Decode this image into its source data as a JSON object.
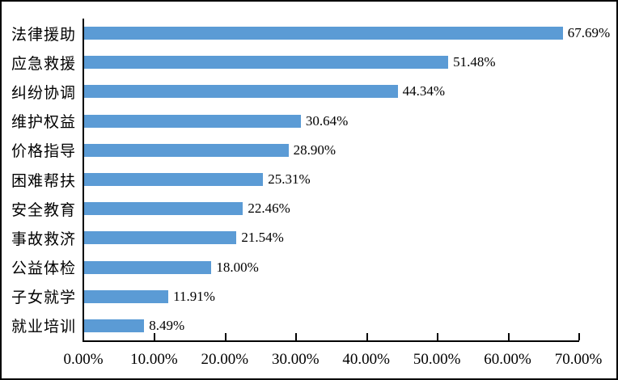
{
  "chart_data": {
    "type": "bar",
    "orientation": "horizontal",
    "title": "",
    "categories": [
      "法律援助",
      "应急救援",
      "纠纷协调",
      "维护权益",
      "价格指导",
      "困难帮扶",
      "安全教育",
      "事故救济",
      "公益体检",
      "子女就学",
      "就业培训"
    ],
    "values": [
      67.69,
      51.48,
      44.34,
      30.64,
      28.9,
      25.31,
      22.46,
      21.54,
      18.0,
      11.91,
      8.49
    ],
    "value_labels": [
      "67.69%",
      "51.48%",
      "44.34%",
      "30.64%",
      "28.90%",
      "25.31%",
      "22.46%",
      "21.54%",
      "18.00%",
      "11.91%",
      "8.49%"
    ],
    "x_tick_labels": [
      "0.00%",
      "10.00%",
      "20.00%",
      "30.00%",
      "40.00%",
      "50.00%",
      "60.00%",
      "70.00%"
    ],
    "xlim": [
      0,
      70
    ],
    "grid": false,
    "legend": false,
    "bar_color": "#5B9BD5",
    "axis_color": "#000000",
    "text_color": "#000000",
    "background_color": "#FFFFFF"
  }
}
